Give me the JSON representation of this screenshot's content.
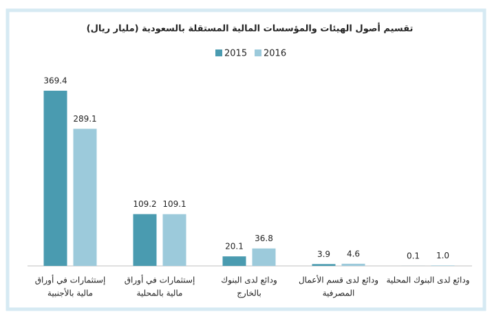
{
  "chart_data": {
    "type": "bar",
    "title": "تقسيم أصول الهيئات والمؤسسات المالية المستقلة بالسعودية (مليار ريال)",
    "categories": [
      [
        "إستثمارات في أوراق",
        "مالية بالأجنبية"
      ],
      [
        "إستثمارات في أوراق",
        "مالية بالمحلية"
      ],
      [
        "ودائع لدى البنوك",
        "بالخارج"
      ],
      [
        "ودائع لدى قسم الأعمال",
        "المصرفية"
      ],
      [
        "ودائع لدى البنوك المحلية"
      ]
    ],
    "series": [
      {
        "name": "2015",
        "color": "#4a9bb0",
        "values": [
          369.4,
          109.2,
          20.1,
          3.9,
          0.1
        ]
      },
      {
        "name": "2016",
        "color": "#9ccadb",
        "values": [
          289.1,
          109.1,
          36.8,
          4.6,
          1
        ],
        "value_labels": [
          "289.1",
          "109.1",
          "36.8",
          "4.6",
          "1.0"
        ]
      }
    ]
  }
}
